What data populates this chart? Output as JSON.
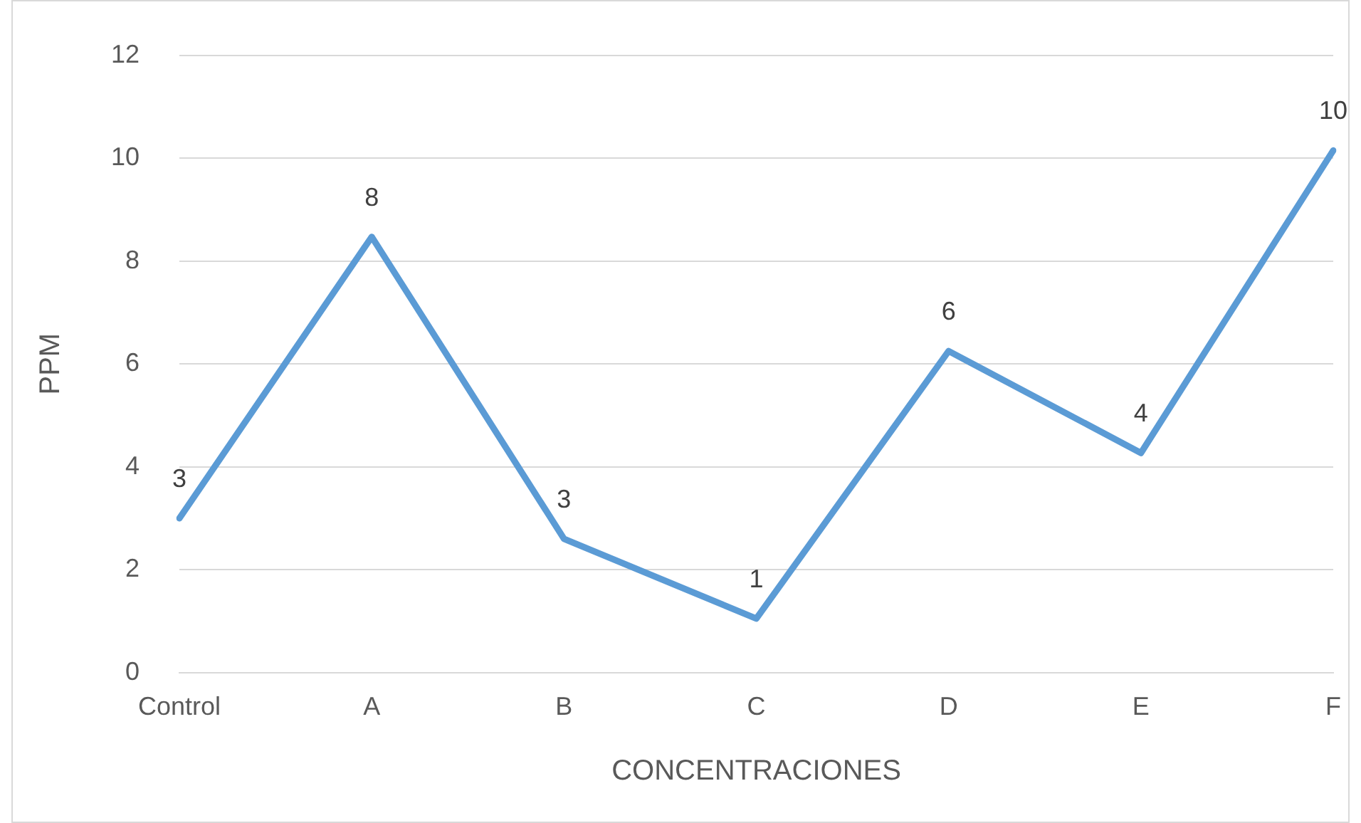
{
  "chart_data": {
    "type": "line",
    "xlabel": "CONCENTRACIONES",
    "ylabel": "PPM",
    "categories": [
      "Control",
      "A",
      "B",
      "C",
      "D",
      "E",
      "F"
    ],
    "series": [
      {
        "color": "#5b9bd5",
        "values": [
          3,
          8.47,
          2.6,
          1.05,
          6.25,
          4.27,
          10.15
        ],
        "value_labels": [
          "3",
          "8",
          "3",
          "1",
          "6",
          "4",
          "10"
        ]
      }
    ],
    "ylim": [
      0,
      12
    ],
    "yticks": [
      0,
      2,
      4,
      6,
      8,
      10,
      12
    ],
    "grid": "y",
    "legend": false,
    "marker": "none",
    "line_style": "solid"
  }
}
